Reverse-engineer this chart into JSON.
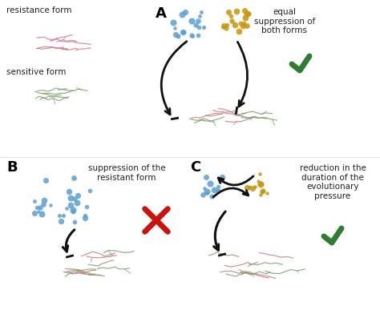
{
  "bg_color": "#ffffff",
  "pink_color": "#c97a80",
  "green_color": "#7a9e6a",
  "blue_dots_color": "#5a9fd4",
  "orange_dots_color": "#c8960a",
  "arrow_color": "#111111",
  "checkmark_color": "#2e7d32",
  "cross_color": "#cc1111",
  "label_resistance": "resistance form",
  "label_sensitive": "sensitive form",
  "label_A_text": "equal\nsuppression of\nboth forms",
  "label_B_text": "suppression of the\nresistant form",
  "label_C_text": "reduction in the\nduration of the\nevolutionary\npressure",
  "letter_A": "A",
  "letter_B": "B",
  "letter_C": "C",
  "fig_w": 4.74,
  "fig_h": 3.92,
  "dpi": 100
}
